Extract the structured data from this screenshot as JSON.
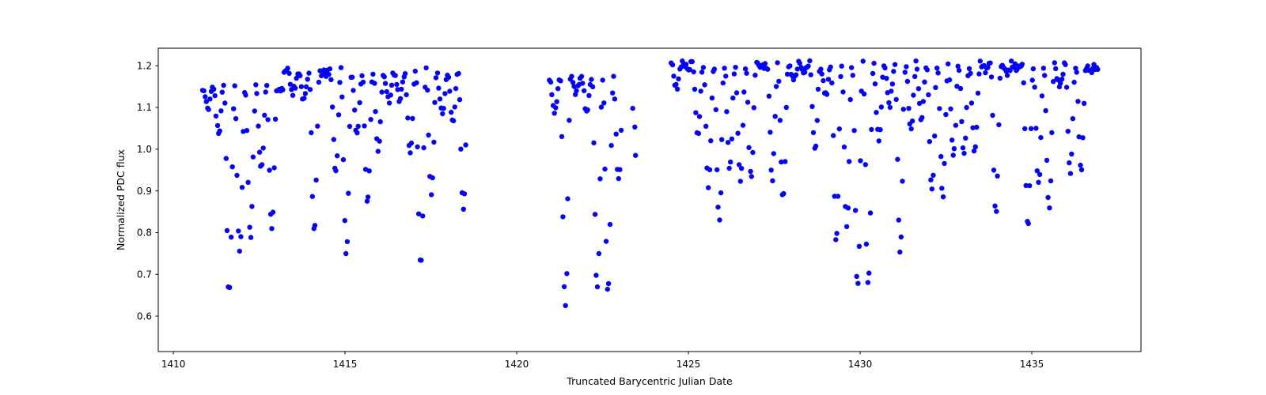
{
  "figure": {
    "background": "#ffffff",
    "frame_color": "#000000",
    "tick_color": "#000000"
  },
  "chart_data": {
    "type": "scatter",
    "title": "",
    "xlabel": "Truncated Barycentric Julian Date",
    "ylabel": "Normalized PDC flux",
    "xlim": [
      1409.56,
      1438.18
    ],
    "ylim": [
      0.515,
      1.242
    ],
    "x_ticks": [
      1410,
      1415,
      1420,
      1425,
      1430,
      1435
    ],
    "y_ticks": [
      0.6,
      0.7,
      0.8,
      0.9,
      1.0,
      1.1,
      1.2
    ],
    "grid": false,
    "legend": null,
    "marker": {
      "shape": "circle",
      "radius_px": 3.2,
      "color": "#0404f2"
    },
    "pattern": "TESS-like light curve of a pulsating/eclipsing star: evenly-sampled points trace chevron-shaped dips of random depth below a bright upper envelope. Two data gaps: 1418.6-1420.9 and 1423.1-1424.5. Upper envelope ~1.149 before day 1413.2, ~1.186 until the first gap, ~1.17 in the short middle chunk, ~1.202 after day 1424.5. Deepest point ~0.547 near day 1421.6.",
    "cadence_days": 0.036,
    "chain_period_days": 0.31,
    "depth_bias_exponent": 1.6,
    "jitter": {
      "y": 0.01,
      "x": 0.006
    },
    "segments": [
      {
        "name": "orbit-1",
        "t_start": 1410.85,
        "t_end": 1418.55,
        "top_envelope": [
          {
            "until": 1413.2,
            "value": 1.149
          },
          {
            "until": 1418.56,
            "value": 1.186
          }
        ],
        "min_flux": 0.613,
        "seed": 20
      },
      {
        "name": "mid-chunk",
        "t_start": 1420.95,
        "t_end": 1423.05,
        "top_envelope": [
          {
            "until": 1423.06,
            "value": 1.17
          }
        ],
        "min_flux": 0.547,
        "seed": 77
      },
      {
        "name": "orbit-2",
        "t_start": 1424.5,
        "t_end": 1436.95,
        "top_envelope": [
          {
            "until": 1436.96,
            "value": 1.202
          }
        ],
        "min_flux": 0.658,
        "seed": 5
      }
    ],
    "extra_points": [
      [
        1423.38,
        1.098
      ],
      [
        1423.44,
        1.053
      ],
      [
        1423.46,
        0.985
      ]
    ]
  }
}
